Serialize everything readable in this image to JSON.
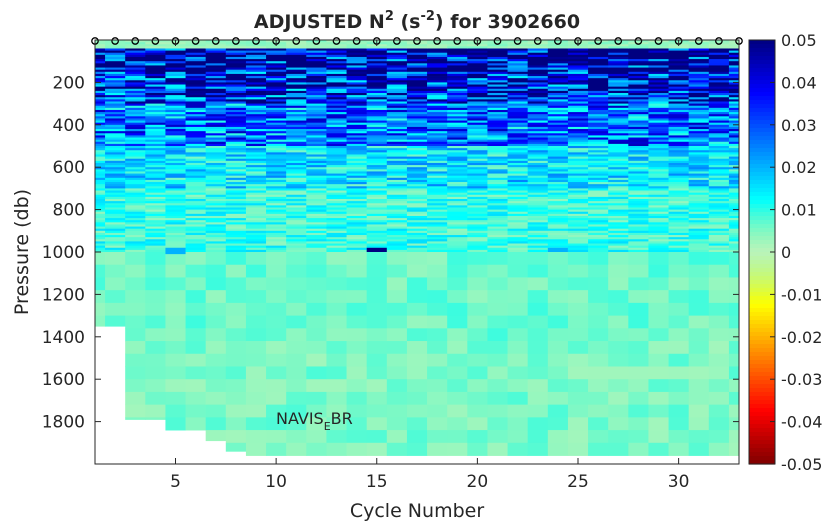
{
  "chart_data": {
    "type": "heatmap",
    "title": {
      "prefix": "ADJUSTED N",
      "sup1": "2",
      "middle": " (s",
      "sup2": "-2",
      "suffix": ") for 3902660"
    },
    "xlabel": "Cycle Number",
    "ylabel": "Pressure (db)",
    "xlim": [
      1,
      33
    ],
    "ylim": [
      0,
      2000
    ],
    "y_reversed": true,
    "x_ticks": [
      5,
      10,
      15,
      20,
      25,
      30
    ],
    "x_tick_labels": [
      "5",
      "10",
      "15",
      "20",
      "25",
      "30"
    ],
    "y_ticks": [
      200,
      400,
      600,
      800,
      1000,
      1200,
      1400,
      1600,
      1800
    ],
    "y_tick_labels": [
      "200",
      "400",
      "600",
      "800",
      "1000",
      "1200",
      "1400",
      "1600",
      "1800"
    ],
    "colorbar": {
      "min": -0.05,
      "max": 0.05,
      "ticks": [
        0.05,
        0.04,
        0.03,
        0.02,
        0.01,
        0,
        -0.01,
        -0.02,
        -0.03,
        -0.04,
        -0.05
      ],
      "tick_labels": [
        "0.05",
        "0.04",
        "0.03",
        "0.02",
        "0.01",
        "0",
        "-0.01",
        "-0.02",
        "-0.03",
        "-0.04",
        "-0.05"
      ]
    },
    "annotation": {
      "base": "NAVIS",
      "sub": "E",
      "tail": "BR"
    },
    "surface_marker": "o",
    "cycles": [
      1,
      2,
      3,
      4,
      5,
      6,
      7,
      8,
      9,
      10,
      11,
      12,
      13,
      14,
      15,
      16,
      17,
      18,
      19,
      20,
      21,
      22,
      23,
      24,
      25,
      26,
      27,
      28,
      29,
      30,
      31,
      32,
      33
    ],
    "max_pressure_by_cycle": [
      1350,
      1350,
      1790,
      1790,
      1840,
      1840,
      1890,
      1940,
      1960,
      1960,
      1960,
      1960,
      1960,
      1960,
      1960,
      1960,
      1960,
      1960,
      1960,
      1960,
      1960,
      1960,
      1960,
      1960,
      1960,
      1960,
      1960,
      1960,
      1960,
      1960,
      1960,
      1960,
      1960
    ],
    "depth_layers": [
      {
        "p_min": 0,
        "p_max": 40,
        "n2_mean": 0.003
      },
      {
        "p_min": 40,
        "p_max": 150,
        "n2_mean": 0.045
      },
      {
        "p_min": 150,
        "p_max": 300,
        "n2_mean": 0.035
      },
      {
        "p_min": 300,
        "p_max": 500,
        "n2_mean": 0.025
      },
      {
        "p_min": 500,
        "p_max": 700,
        "n2_mean": 0.014
      },
      {
        "p_min": 700,
        "p_max": 1000,
        "n2_mean": 0.009
      },
      {
        "p_min": 1000,
        "p_max": 1400,
        "n2_mean": 0.006
      },
      {
        "p_min": 1400,
        "p_max": 2000,
        "n2_mean": 0.005
      }
    ],
    "highlights": [
      {
        "cycle": 15,
        "p_min": 980,
        "p_max": 1000,
        "n2": 0.05
      },
      {
        "cycle": 5,
        "p_min": 980,
        "p_max": 1010,
        "n2": 0.02
      },
      {
        "cycle": 24,
        "p_min": 980,
        "p_max": 1000,
        "n2": 0.02
      }
    ],
    "colormap": "jet-reversed"
  }
}
